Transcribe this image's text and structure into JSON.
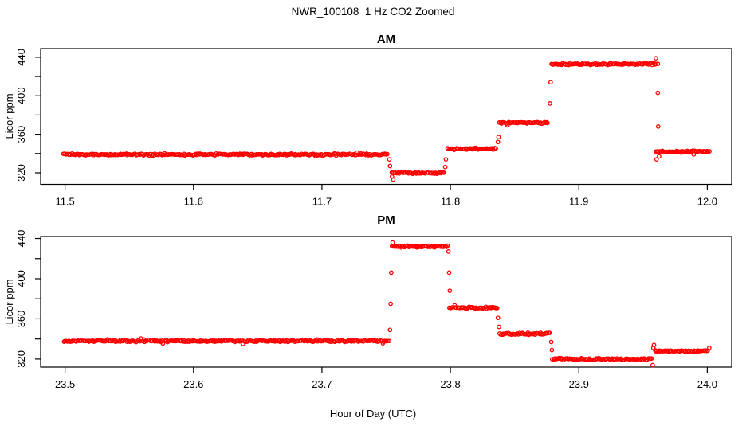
{
  "figure": {
    "title": "NWR_100108  1 Hz CO2 Zoomed",
    "xlabel": "Hour of Day (UTC)"
  },
  "colors": {
    "points": "#ff0000",
    "axis": "#000000",
    "text": "#000000",
    "background": "#ffffff"
  },
  "chart_data": [
    {
      "type": "scatter",
      "title": "AM",
      "xlabel": "Hour of Day (UTC)",
      "ylabel": "Licor ppm",
      "point_style": "open-circle",
      "grid": false,
      "xlim": [
        11.481,
        12.019
      ],
      "ylim": [
        308,
        449
      ],
      "x_ticks": [
        11.5,
        11.6,
        11.7,
        11.8,
        11.9,
        12.0
      ],
      "y_ticks": [
        320,
        340,
        360,
        380,
        400,
        420,
        440
      ],
      "y_tick_labels": [
        320,
        360,
        400,
        440
      ],
      "segments": [
        {
          "t_start": 11.499,
          "t_end": 11.7515,
          "ppm": 339
        },
        {
          "t_start": 11.7545,
          "t_end": 11.7955,
          "ppm": 320
        },
        {
          "t_start": 11.7975,
          "t_end": 11.836,
          "ppm": 345
        },
        {
          "t_start": 11.838,
          "t_end": 11.8765,
          "ppm": 372
        },
        {
          "t_start": 11.8785,
          "t_end": 11.962,
          "ppm": 433
        },
        {
          "t_start": 11.96,
          "t_end": 12.002,
          "ppm": 342
        }
      ],
      "transition_points": [
        {
          "t": 11.7525,
          "ppm": 334
        },
        {
          "t": 11.753,
          "ppm": 327
        },
        {
          "t": 11.7545,
          "ppm": 316
        },
        {
          "t": 11.7555,
          "ppm": 313
        },
        {
          "t": 11.796,
          "ppm": 326
        },
        {
          "t": 11.7965,
          "ppm": 334
        },
        {
          "t": 11.837,
          "ppm": 352
        },
        {
          "t": 11.8375,
          "ppm": 357
        },
        {
          "t": 11.8775,
          "ppm": 392
        },
        {
          "t": 11.878,
          "ppm": 414
        },
        {
          "t": 11.96,
          "ppm": 439
        },
        {
          "t": 11.9615,
          "ppm": 403
        },
        {
          "t": 11.9618,
          "ppm": 368
        },
        {
          "t": 11.9605,
          "ppm": 334
        },
        {
          "t": 11.9625,
          "ppm": 337
        }
      ]
    },
    {
      "type": "scatter",
      "title": "PM",
      "xlabel": "Hour of Day (UTC)",
      "ylabel": "Licor ppm",
      "point_style": "open-circle",
      "grid": false,
      "xlim": [
        23.481,
        24.019
      ],
      "ylim": [
        312,
        442
      ],
      "x_ticks": [
        23.5,
        23.6,
        23.7,
        23.8,
        23.9,
        24.0
      ],
      "y_ticks": [
        320,
        340,
        360,
        380,
        400,
        420,
        440
      ],
      "y_tick_labels": [
        320,
        360,
        400,
        440
      ],
      "segments": [
        {
          "t_start": 23.499,
          "t_end": 23.752,
          "ppm": 338
        },
        {
          "t_start": 23.7545,
          "t_end": 23.798,
          "ppm": 432
        },
        {
          "t_start": 23.7995,
          "t_end": 23.8365,
          "ppm": 371
        },
        {
          "t_start": 23.8385,
          "t_end": 23.8775,
          "ppm": 345
        },
        {
          "t_start": 23.8795,
          "t_end": 23.957,
          "ppm": 320
        },
        {
          "t_start": 23.959,
          "t_end": 24.002,
          "ppm": 328
        }
      ],
      "transition_points": [
        {
          "t": 23.753,
          "ppm": 349
        },
        {
          "t": 23.7535,
          "ppm": 375
        },
        {
          "t": 23.754,
          "ppm": 406
        },
        {
          "t": 23.755,
          "ppm": 436
        },
        {
          "t": 23.7985,
          "ppm": 427
        },
        {
          "t": 23.799,
          "ppm": 406
        },
        {
          "t": 23.7995,
          "ppm": 388
        },
        {
          "t": 23.837,
          "ppm": 361
        },
        {
          "t": 23.8378,
          "ppm": 352
        },
        {
          "t": 23.8785,
          "ppm": 337
        },
        {
          "t": 23.879,
          "ppm": 329
        },
        {
          "t": 23.9575,
          "ppm": 314
        },
        {
          "t": 23.958,
          "ppm": 331
        },
        {
          "t": 23.9585,
          "ppm": 334
        }
      ]
    }
  ]
}
